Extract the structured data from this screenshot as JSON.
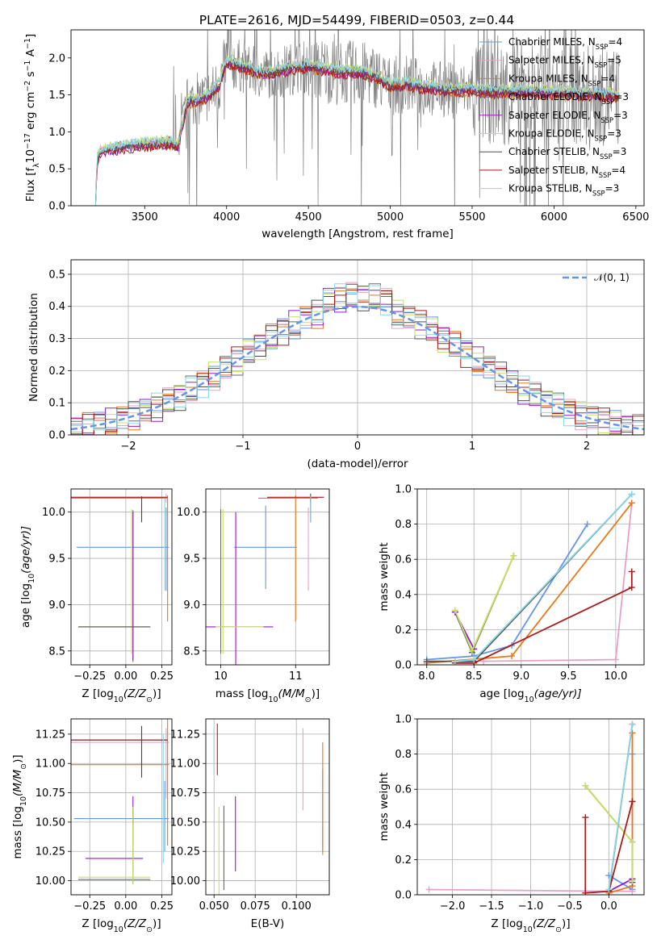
{
  "figure_title": "PLATE=2616, MJD=54499, FIBERID=0503, z=0.44",
  "colors": {
    "data": "#808080",
    "models": [
      "#6495ED",
      "#E8A0C8",
      "#E87818",
      "#607060",
      "#9818C8",
      "#C8E060",
      "#505050",
      "#B01818",
      "#88D8E8"
    ],
    "normal": "#6495ED"
  },
  "legend_names": [
    [
      "Chabrier MILES, N",
      "SSP",
      "=4"
    ],
    [
      "Salpeter MILES, N",
      "SSP",
      "=5"
    ],
    [
      "Kroupa MILES, N",
      "SSP",
      "=4"
    ],
    [
      "Chabrier ELODIE, N",
      "SSP",
      "=3"
    ],
    [
      "Salpeter ELODIE, N",
      "SSP",
      "=3"
    ],
    [
      "Kroupa ELODIE, N",
      "SSP",
      "=3"
    ],
    [
      "Chabrier STELIB, N",
      "SSP",
      "=3"
    ],
    [
      "Salpeter STELIB, N",
      "SSP",
      "=4"
    ],
    [
      "Kroupa STELIB, N",
      "SSP",
      "=3"
    ]
  ],
  "chart_data": [
    {
      "id": "spectrum",
      "type": "line",
      "xlabel": "wavelength [Angstrom, rest frame]",
      "ylabel_parts": [
        "Flux [f",
        "λ",
        "10",
        "−17",
        " erg cm",
        "−2",
        " s",
        "−1",
        " A",
        "−1",
        "]"
      ],
      "xlim": [
        3050,
        6550
      ],
      "ylim": [
        0,
        2.38
      ],
      "xticks": [
        3500,
        4000,
        4500,
        5000,
        5500,
        6000,
        6500
      ],
      "yticks": [
        0.0,
        0.5,
        1.0,
        1.5,
        2.0
      ],
      "xtick_labels": [
        "3500",
        "4000",
        "4500",
        "5000",
        "5500",
        "6000",
        "6500"
      ],
      "ytick_labels": [
        "0.0",
        "0.5",
        "1.0",
        "1.5",
        "2.0"
      ],
      "grid": false,
      "legend": "top-right",
      "continuum_knots": [
        [
          3200,
          0.0
        ],
        [
          3210,
          0.62
        ],
        [
          3230,
          0.72
        ],
        [
          3300,
          0.76
        ],
        [
          3400,
          0.8
        ],
        [
          3500,
          0.82
        ],
        [
          3600,
          0.84
        ],
        [
          3650,
          0.85
        ],
        [
          3700,
          0.78
        ],
        [
          3760,
          1.4
        ],
        [
          3820,
          1.42
        ],
        [
          3900,
          1.5
        ],
        [
          3960,
          1.65
        ],
        [
          4000,
          1.95
        ],
        [
          4100,
          1.88
        ],
        [
          4200,
          1.78
        ],
        [
          4300,
          1.8
        ],
        [
          4400,
          1.86
        ],
        [
          4500,
          1.88
        ],
        [
          4600,
          1.84
        ],
        [
          4700,
          1.8
        ],
        [
          4800,
          1.8
        ],
        [
          4900,
          1.76
        ],
        [
          5000,
          1.62
        ],
        [
          5100,
          1.64
        ],
        [
          5200,
          1.6
        ],
        [
          5300,
          1.58
        ],
        [
          5400,
          1.56
        ],
        [
          5500,
          1.56
        ],
        [
          5600,
          1.55
        ],
        [
          5700,
          1.54
        ],
        [
          5800,
          1.54
        ],
        [
          5900,
          1.53
        ],
        [
          6000,
          1.52
        ],
        [
          6100,
          1.52
        ],
        [
          6200,
          1.5
        ],
        [
          6300,
          1.5
        ],
        [
          6400,
          1.48
        ]
      ],
      "model_offsets": [
        0.02,
        0.04,
        -0.03,
        0.03,
        -0.02,
        0.06,
        -0.01,
        -0.04,
        0.05
      ]
    },
    {
      "id": "residuals",
      "type": "line",
      "xlabel": "(data-model)/error",
      "ylabel": "Normed distribution",
      "xlim": [
        -2.5,
        2.5
      ],
      "ylim": [
        0,
        0.545
      ],
      "xticks": [
        -2,
        -1,
        0,
        1,
        2
      ],
      "yticks": [
        0.0,
        0.1,
        0.2,
        0.3,
        0.4,
        0.5
      ],
      "xtick_labels": [
        "−2",
        "−1",
        "0",
        "1",
        "2"
      ],
      "ytick_labels": [
        "0.0",
        "0.1",
        "0.2",
        "0.3",
        "0.4",
        "0.5"
      ],
      "grid": true,
      "legend": "top-right",
      "normal_label": "𝒩(0, 1)",
      "bin_width": 0.1,
      "bins_start": -2.5,
      "jitter": [
        0.012,
        -0.018,
        0.022,
        -0.03,
        0.028,
        -0.01,
        0.035,
        -0.022,
        0.008,
        -0.04,
        0.03,
        0.018,
        -0.026,
        0.04,
        -0.015,
        0.02
      ]
    },
    {
      "id": "age-Z",
      "type": "scatter",
      "xlabel_parts": [
        "Z [log",
        "10",
        "(Z/Z",
        "⊙",
        ")]"
      ],
      "ylabel_parts": [
        "age  [log",
        "10",
        "(age/yr)]"
      ],
      "xlim": [
        -0.38,
        0.32
      ],
      "ylim": [
        8.35,
        10.25
      ],
      "xticks": [
        -0.25,
        0.0,
        0.25
      ],
      "yticks": [
        8.5,
        9.0,
        9.5,
        10.0
      ],
      "xtick_labels": [
        "−0.25",
        "0.00",
        "0.25"
      ],
      "ytick_labels": [
        "8.5",
        "9.0",
        "9.5",
        "10.0"
      ],
      "grid": true,
      "points": [
        {
          "m": 0,
          "x": -0.02,
          "xe": 0.32,
          "y": 9.62,
          "ye": 0.0
        },
        {
          "m": 0,
          "x": 0.28,
          "xe": 0.0,
          "y": 9.6,
          "ye": 0.45
        },
        {
          "m": 1,
          "x": 0.28,
          "xe": 0.0,
          "y": 10.15,
          "ye": 0.05
        },
        {
          "m": 1,
          "x": -0.05,
          "xe": 0.34,
          "y": 10.16,
          "ye": 0.0
        },
        {
          "m": 2,
          "x": -0.05,
          "xe": 0.34,
          "y": 10.15,
          "ye": 0.0
        },
        {
          "m": 2,
          "x": 0.29,
          "xe": 0.0,
          "y": 9.5,
          "ye": 0.68
        },
        {
          "m": 3,
          "x": 0.05,
          "xe": 0.0,
          "y": 9.2,
          "ye": 0.82
        },
        {
          "m": 4,
          "x": 0.05,
          "xe": 0.0,
          "y": 9.2,
          "ye": 0.8
        },
        {
          "m": 5,
          "x": -0.08,
          "xe": 0.25,
          "y": 8.76,
          "ye": 0.0
        },
        {
          "m": 5,
          "x": 0.04,
          "xe": 0.0,
          "y": 9.25,
          "ye": 0.78
        },
        {
          "m": 6,
          "x": -0.08,
          "xe": 0.25,
          "y": 8.76,
          "ye": 0.0
        },
        {
          "m": 7,
          "x": 0.11,
          "xe": 0.0,
          "y": 10.03,
          "ye": 0.14
        },
        {
          "m": 7,
          "x": -0.05,
          "xe": 0.34,
          "y": 10.16,
          "ye": 0.0
        },
        {
          "m": 8,
          "x": 0.27,
          "xe": 0.0,
          "y": 9.65,
          "ye": 0.5
        }
      ]
    },
    {
      "id": "age-mass",
      "type": "scatter",
      "xlabel_parts": [
        "mass [log",
        "10",
        "(M/M",
        "⊙",
        ")]"
      ],
      "ylabel": "",
      "xlim": [
        9.8,
        11.45
      ],
      "ylim": [
        8.35,
        10.25
      ],
      "xticks": [
        10,
        11
      ],
      "yticks": [
        8.5,
        9.0,
        9.5,
        10.0
      ],
      "xtick_labels": [
        "10",
        "11"
      ],
      "ytick_labels": [
        "8.5",
        "9.0",
        "9.5",
        "10.0"
      ],
      "grid": true,
      "points": [
        {
          "m": 0,
          "x": 10.6,
          "xe": 0.42,
          "y": 9.62,
          "ye": 0.45
        },
        {
          "m": 1,
          "x": 11.17,
          "xe": 0.0,
          "y": 9.6,
          "ye": 0.45
        },
        {
          "m": 2,
          "x": 11.0,
          "xe": 0.0,
          "y": 9.5,
          "ye": 0.68
        },
        {
          "m": 2,
          "x": 10.9,
          "xe": 0.4,
          "y": 10.15,
          "ye": 0.0
        },
        {
          "m": 3,
          "x": 10.0,
          "xe": 0.0,
          "y": 9.25,
          "ye": 0.78
        },
        {
          "m": 4,
          "x": 10.2,
          "xe": 0.0,
          "y": 9.15,
          "ye": 0.85
        },
        {
          "m": 4,
          "x": 10.2,
          "xe": 0.5,
          "y": 8.76,
          "ye": 0.0
        },
        {
          "m": 5,
          "x": 10.03,
          "xe": 0.0,
          "y": 9.25,
          "ye": 0.78
        },
        {
          "m": 5,
          "x": 10.25,
          "xe": 0.32,
          "y": 8.76,
          "ye": 0.0
        },
        {
          "m": 6,
          "x": 11.2,
          "xe": 0.0,
          "y": 10.15,
          "ye": 0.05
        },
        {
          "m": 7,
          "x": 11.2,
          "xe": 0.0,
          "y": 10.03,
          "ye": 0.14
        },
        {
          "m": 7,
          "x": 11.0,
          "xe": 0.38,
          "y": 10.16,
          "ye": 0.0
        },
        {
          "m": 8,
          "x": 11.2,
          "xe": 0.0,
          "y": 10.03,
          "ye": 0.14
        }
      ]
    },
    {
      "id": "weight-age",
      "type": "line",
      "xlabel_parts": [
        "age  [log",
        "10",
        "(age/yr)]"
      ],
      "ylabel": "mass weight",
      "xlim": [
        7.9,
        10.3
      ],
      "ylim": [
        0,
        1.0
      ],
      "xticks": [
        8.0,
        8.5,
        9.0,
        9.5,
        10.0
      ],
      "yticks": [
        0.0,
        0.2,
        0.4,
        0.6,
        0.8,
        1.0
      ],
      "xtick_labels": [
        "8.0",
        "8.5",
        "9.0",
        "9.5",
        "10.0"
      ],
      "ytick_labels": [
        "0.0",
        "0.2",
        "0.4",
        "0.6",
        "0.8",
        "1.0"
      ],
      "grid": true,
      "series": [
        {
          "m": 0,
          "x": [
            8.0,
            8.5,
            8.9,
            9.7
          ],
          "y": [
            0.03,
            0.05,
            0.11,
            0.8
          ]
        },
        {
          "m": 1,
          "x": [
            8.6,
            10.0,
            10.17
          ],
          "y": [
            0.02,
            0.03,
            0.92
          ]
        },
        {
          "m": 2,
          "x": [
            8.0,
            8.9,
            10.17
          ],
          "y": [
            0.01,
            0.05,
            0.92
          ]
        },
        {
          "m": 3,
          "x": [
            8.3,
            8.48,
            8.92
          ],
          "y": [
            0.3,
            0.07,
            0.62
          ]
        },
        {
          "m": 4,
          "x": [
            8.3,
            8.5
          ],
          "y": [
            0.3,
            0.09
          ]
        },
        {
          "m": 5,
          "x": [
            8.3,
            8.48,
            8.92
          ],
          "y": [
            0.31,
            0.08,
            0.62
          ]
        },
        {
          "m": 6,
          "x": [
            8.0,
            8.5,
            10.17
          ],
          "y": [
            0.02,
            0.02,
            0.97
          ]
        },
        {
          "m": 7,
          "x": [
            8.3,
            8.5,
            10.17,
            10.17
          ],
          "y": [
            0.01,
            0.01,
            0.44,
            0.53
          ]
        },
        {
          "m": 8,
          "x": [
            8.3,
            8.5,
            10.17
          ],
          "y": [
            0.02,
            0.03,
            0.97
          ]
        }
      ]
    },
    {
      "id": "mass-Z",
      "type": "scatter",
      "xlabel_parts": [
        "Z [log",
        "10",
        "(Z/Z",
        "⊙",
        ")]"
      ],
      "ylabel_parts": [
        "mass [log",
        "10",
        "(M/M",
        "⊙",
        ")]"
      ],
      "xlim": [
        -0.38,
        0.32
      ],
      "ylim": [
        9.88,
        11.38
      ],
      "xticks": [
        -0.25,
        0.0,
        0.25
      ],
      "yticks": [
        10.0,
        10.25,
        10.5,
        10.75,
        11.0,
        11.25
      ],
      "xtick_labels": [
        "−0.25",
        "0.00",
        "0.25"
      ],
      "ytick_labels": [
        "10.00",
        "10.25",
        "10.50",
        "10.75",
        "11.00",
        "11.25"
      ],
      "grid": true,
      "points": [
        {
          "m": 0,
          "x": -0.03,
          "xe": 0.33,
          "y": 10.53,
          "ye": 0.0
        },
        {
          "m": 0,
          "x": 0.27,
          "xe": 0.0,
          "y": 10.55,
          "ye": 0.3
        },
        {
          "m": 1,
          "x": -0.04,
          "xe": 0.34,
          "y": 11.18,
          "ye": 0.0
        },
        {
          "m": 1,
          "x": 0.28,
          "xe": 0.0,
          "y": 11.0,
          "ye": 0.3
        },
        {
          "m": 2,
          "x": -0.04,
          "xe": 0.34,
          "y": 10.99,
          "ye": 0.0
        },
        {
          "m": 2,
          "x": 0.29,
          "xe": 0.0,
          "y": 10.85,
          "ye": 0.55
        },
        {
          "m": 3,
          "x": 0.05,
          "xe": 0.0,
          "y": 10.3,
          "ye": 0.33
        },
        {
          "m": 3,
          "x": -0.08,
          "xe": 0.25,
          "y": 10.01,
          "ye": 0.0
        },
        {
          "m": 4,
          "x": -0.08,
          "xe": 0.2,
          "y": 10.19,
          "ye": 0.0
        },
        {
          "m": 4,
          "x": 0.05,
          "xe": 0.0,
          "y": 10.6,
          "ye": 0.12
        },
        {
          "m": 5,
          "x": -0.08,
          "xe": 0.25,
          "y": 10.03,
          "ye": 0.0
        },
        {
          "m": 5,
          "x": 0.05,
          "xe": 0.0,
          "y": 10.3,
          "ye": 0.33
        },
        {
          "m": 6,
          "x": -0.05,
          "xe": 0.34,
          "y": 11.2,
          "ye": 0.0
        },
        {
          "m": 7,
          "x": 0.11,
          "xe": 0.0,
          "y": 11.1,
          "ye": 0.22
        },
        {
          "m": 7,
          "x": -0.05,
          "xe": 0.34,
          "y": 11.2,
          "ye": 0.0
        },
        {
          "m": 8,
          "x": 0.26,
          "xe": 0.0,
          "y": 10.7,
          "ye": 0.55
        }
      ]
    },
    {
      "id": "mass-EBV",
      "type": "scatter",
      "xlabel": "E(B-V)",
      "ylabel": "",
      "xlim": [
        0.045,
        0.12
      ],
      "ylim": [
        9.88,
        11.38
      ],
      "xticks": [
        0.05,
        0.075,
        0.1
      ],
      "yticks": [
        10.0,
        10.25,
        10.5,
        10.75,
        11.0,
        11.25
      ],
      "xtick_labels": [
        "0.050",
        "0.075",
        "0.100"
      ],
      "ytick_labels": [
        "10.00",
        "10.25",
        "10.50",
        "10.75",
        "11.00",
        "11.25"
      ],
      "grid": true,
      "points": [
        {
          "m": 0,
          "x": 0.116,
          "xe": 0.0,
          "y": 10.6,
          "ye": 0.35
        },
        {
          "m": 1,
          "x": 0.104,
          "xe": 0.0,
          "y": 10.95,
          "ye": 0.35
        },
        {
          "m": 2,
          "x": 0.116,
          "xe": 0.0,
          "y": 10.7,
          "ye": 0.48
        },
        {
          "m": 3,
          "x": 0.056,
          "xe": 0.0,
          "y": 10.28,
          "ye": 0.36
        },
        {
          "m": 4,
          "x": 0.063,
          "xe": 0.0,
          "y": 10.4,
          "ye": 0.32
        },
        {
          "m": 5,
          "x": 0.053,
          "xe": 0.0,
          "y": 10.25,
          "ye": 0.38
        },
        {
          "m": 7,
          "x": 0.052,
          "xe": 0.0,
          "y": 11.12,
          "ye": 0.22
        },
        {
          "m": 8,
          "x": 0.05,
          "xe": 0.0,
          "y": 11.1,
          "ye": 0.2
        }
      ]
    },
    {
      "id": "weight-Z",
      "type": "line",
      "xlabel_parts": [
        "Z [log",
        "10",
        "(Z/Z",
        "⊙",
        ")]"
      ],
      "ylabel": "mass weight",
      "xlim": [
        -2.45,
        0.45
      ],
      "ylim": [
        0,
        1.0
      ],
      "xticks": [
        -2.0,
        -1.5,
        -1.0,
        -0.5,
        0.0
      ],
      "yticks": [
        0.0,
        0.2,
        0.4,
        0.6,
        0.8,
        1.0
      ],
      "xtick_labels": [
        "−2.0",
        "−1.5",
        "−1.0",
        "−0.5",
        "0.0"
      ],
      "ytick_labels": [
        "0.0",
        "0.2",
        "0.4",
        "0.6",
        "0.8",
        "1.0"
      ],
      "grid": true,
      "series": [
        {
          "m": 0,
          "x": [
            0.0,
            0.3,
            0.3
          ],
          "y": [
            0.11,
            0.03,
            0.8
          ]
        },
        {
          "m": 1,
          "x": [
            -2.3,
            0.0,
            0.3,
            0.3
          ],
          "y": [
            0.03,
            0.02,
            0.02,
            0.92
          ]
        },
        {
          "m": 2,
          "x": [
            0.0,
            0.3,
            0.3
          ],
          "y": [
            0.01,
            0.05,
            0.92
          ]
        },
        {
          "m": 3,
          "x": [
            -0.3,
            0.3,
            0.3
          ],
          "y": [
            0.62,
            0.3,
            0.07
          ]
        },
        {
          "m": 4,
          "x": [
            0.0,
            0.3
          ],
          "y": [
            0.02,
            0.09
          ]
        },
        {
          "m": 5,
          "x": [
            -0.3,
            0.3,
            0.3
          ],
          "y": [
            0.62,
            0.3,
            0.08
          ]
        },
        {
          "m": 6,
          "x": [
            0.0,
            0.3
          ],
          "y": [
            0.02,
            0.97
          ]
        },
        {
          "m": 7,
          "x": [
            -0.3,
            -0.3,
            0.0,
            0.3,
            0.3
          ],
          "y": [
            0.44,
            0.01,
            0.02,
            0.53,
            0.53
          ]
        },
        {
          "m": 8,
          "x": [
            0.0,
            0.3
          ],
          "y": [
            0.03,
            0.97
          ]
        }
      ]
    }
  ]
}
